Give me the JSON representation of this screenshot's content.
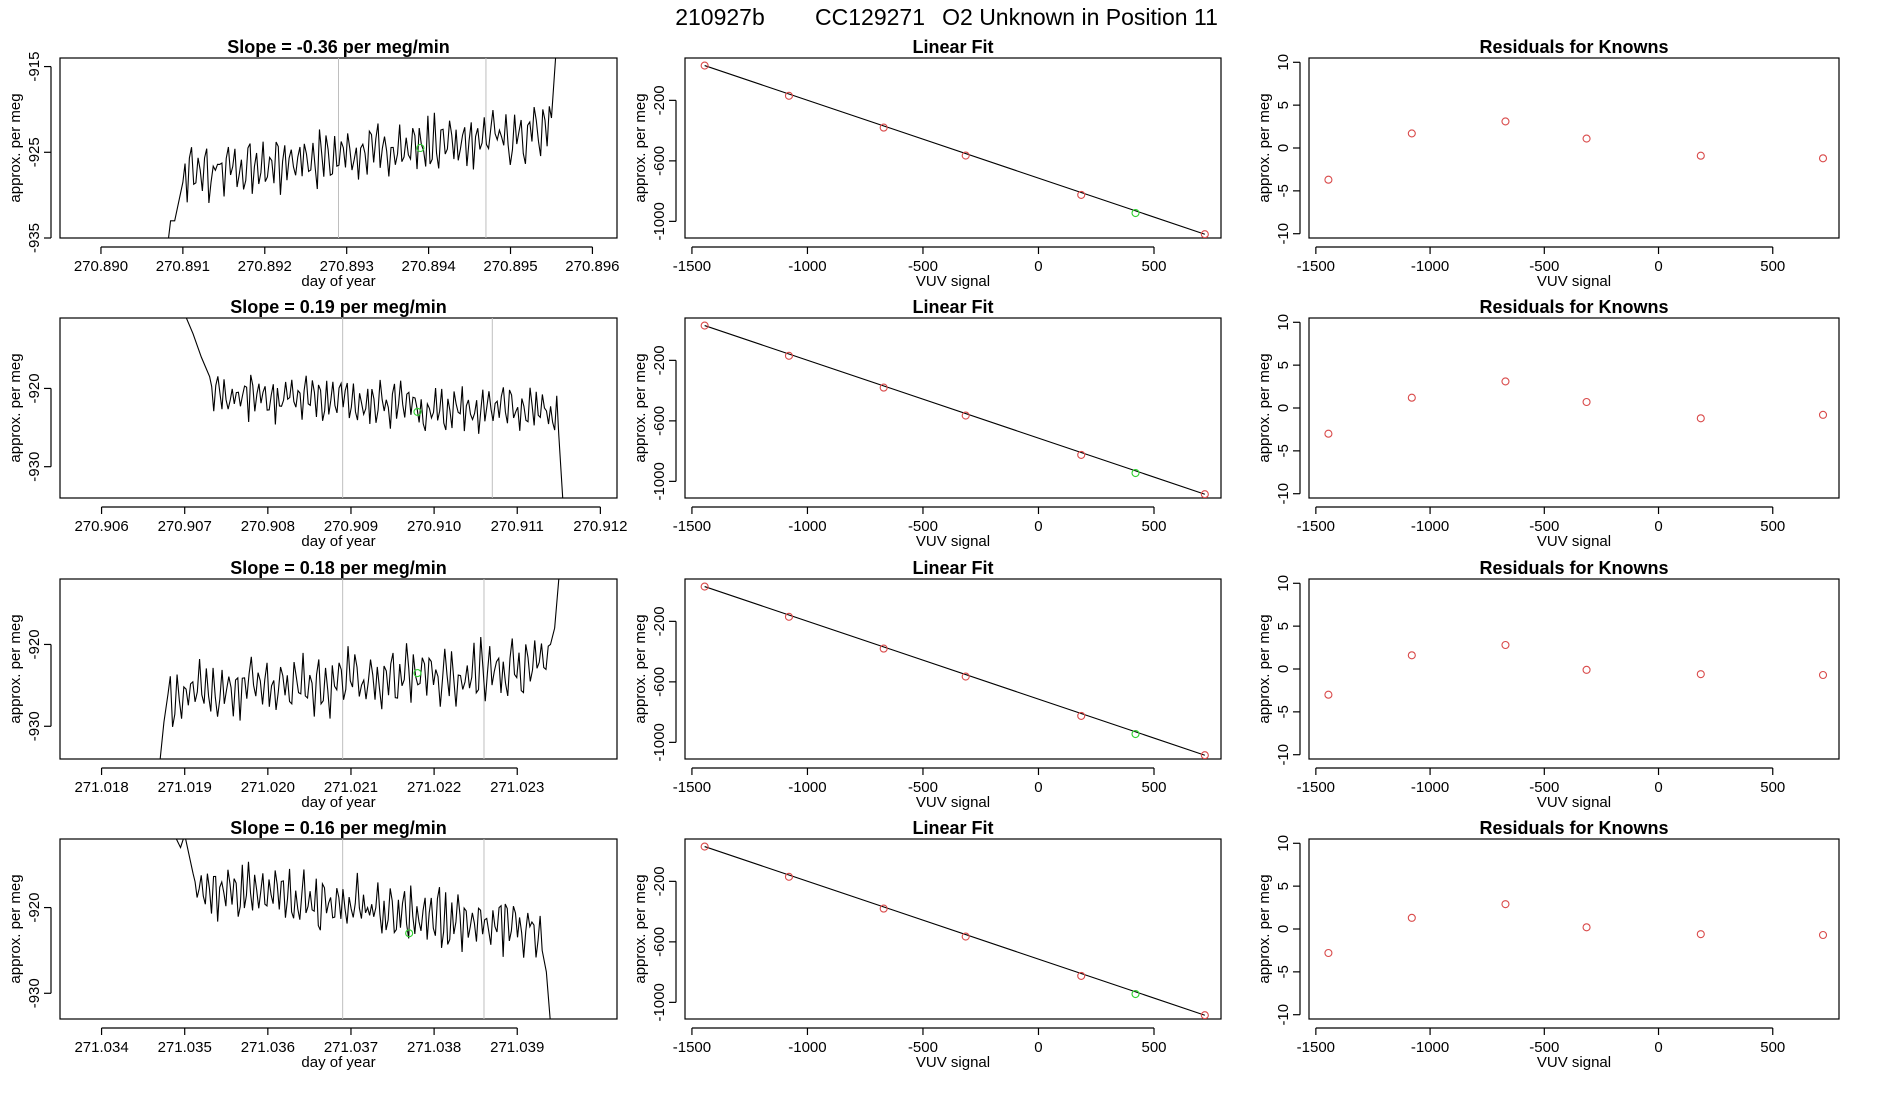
{
  "page": {
    "title_parts": [
      "210927b",
      "CC129271",
      "O2 Unknown in Position  11"
    ]
  },
  "colors": {
    "known": "#d94a4a",
    "unknown": "#2fd02f",
    "trace": "#000000",
    "reference_line": "#bfbfbf"
  },
  "chart_data": [
    {
      "type": "line",
      "role": "timeseries",
      "row": 0,
      "title": "Slope =  -0.36  per meg/min",
      "xlabel": "day of year",
      "ylabel": "approx. per meg",
      "xlim": [
        270.8895,
        270.8963
      ],
      "ylim": [
        -935,
        -914
      ],
      "x_ticks": [
        270.89,
        270.891,
        270.892,
        270.893,
        270.894,
        270.895,
        270.896
      ],
      "x_tick_labels": [
        "270.890",
        "270.891",
        "270.892",
        "270.893",
        "270.894",
        "270.895",
        "270.896"
      ],
      "y_ticks": [
        -935,
        -925,
        -915
      ],
      "y_tick_labels": [
        "-935",
        "-925",
        "-915"
      ],
      "vlines": [
        270.8929,
        270.8947
      ],
      "series": {
        "x_start": 270.8908,
        "x_end": 270.8955,
        "seed": 11,
        "baseline_start": -927.5,
        "baseline_end": -922.5,
        "amplitude": 2.3,
        "lead_in": [
          [
            270.8908,
            -937
          ],
          [
            270.89085,
            -933
          ],
          [
            270.8909,
            -933
          ],
          [
            270.891,
            -928.5
          ]
        ],
        "tail": [
          [
            270.8955,
            -921
          ],
          [
            270.89555,
            -914
          ]
        ]
      },
      "unknown_point": {
        "x": 270.8939,
        "y": -924.5
      }
    },
    {
      "type": "line",
      "role": "linear-fit",
      "row": 0,
      "title": "Linear Fit",
      "xlabel": "VUV signal",
      "ylabel": "approx. per meg",
      "xlim": [
        -1530,
        790
      ],
      "ylim": [
        -1110,
        80
      ],
      "x_ticks": [
        -1500,
        -1000,
        -500,
        0,
        500
      ],
      "x_tick_labels": [
        "-1500",
        "-1000",
        "-500",
        "0",
        "500"
      ],
      "y_ticks": [
        -1000,
        -600,
        -200
      ],
      "y_tick_labels": [
        "-1000",
        "-600",
        "-200"
      ],
      "fit_line": [
        [
          -1445,
          30
        ],
        [
          720,
          -1085
        ]
      ],
      "known_points": [
        [
          -1445,
          30
        ],
        [
          -1080,
          -170
        ],
        [
          -670,
          -380
        ],
        [
          -315,
          -565
        ],
        [
          185,
          -825
        ],
        [
          720,
          -1085
        ]
      ],
      "unknown_points": [
        [
          420,
          -945
        ]
      ]
    },
    {
      "type": "scatter",
      "role": "residuals",
      "row": 0,
      "title": "Residuals for Knowns",
      "xlabel": "VUV signal",
      "ylabel": "approx. per meg",
      "xlim": [
        -1530,
        790
      ],
      "ylim": [
        -10.5,
        10.5
      ],
      "x_ticks": [
        -1500,
        -1000,
        -500,
        0,
        500
      ],
      "x_tick_labels": [
        "-1500",
        "-1000",
        "-500",
        "0",
        "500"
      ],
      "y_ticks": [
        -10,
        -5,
        0,
        5,
        10
      ],
      "y_tick_labels": [
        "-10",
        "-5",
        "0",
        "5",
        "10"
      ],
      "points": [
        [
          -1445,
          -3.7
        ],
        [
          -1080,
          1.7
        ],
        [
          -670,
          3.1
        ],
        [
          -315,
          1.1
        ],
        [
          185,
          -0.9
        ],
        [
          720,
          -1.2
        ]
      ]
    },
    {
      "type": "line",
      "role": "timeseries",
      "row": 1,
      "title": "Slope =  0.19  per meg/min",
      "xlabel": "day of year",
      "ylabel": "approx. per meg",
      "xlim": [
        270.9055,
        270.9122
      ],
      "ylim": [
        -934,
        -911
      ],
      "x_ticks": [
        270.906,
        270.907,
        270.908,
        270.909,
        270.91,
        270.911,
        270.912
      ],
      "x_tick_labels": [
        "270.906",
        "270.907",
        "270.908",
        "270.909",
        "270.910",
        "270.911",
        "270.912"
      ],
      "y_ticks": [
        -930,
        -920
      ],
      "y_tick_labels": [
        "-930",
        "-920"
      ],
      "vlines": [
        270.9089,
        270.9107
      ],
      "series": {
        "x_start": 270.907,
        "x_end": 270.9115,
        "seed": 23,
        "baseline_start": -921.0,
        "baseline_end": -923.0,
        "amplitude": 2.0,
        "lead_in": [
          [
            270.907,
            -910.5
          ],
          [
            270.9071,
            -913
          ],
          [
            270.9072,
            -916
          ],
          [
            270.9073,
            -918.5
          ]
        ],
        "tail": [
          [
            270.9115,
            -926
          ],
          [
            270.91155,
            -934.5
          ]
        ]
      },
      "unknown_point": {
        "x": 270.9098,
        "y": -923
      }
    },
    {
      "type": "line",
      "role": "linear-fit",
      "row": 1,
      "title": "Linear Fit",
      "xlabel": "VUV signal",
      "ylabel": "approx. per meg",
      "xlim": [
        -1530,
        790
      ],
      "ylim": [
        -1110,
        80
      ],
      "x_ticks": [
        -1500,
        -1000,
        -500,
        0,
        500
      ],
      "x_tick_labels": [
        "-1500",
        "-1000",
        "-500",
        "0",
        "500"
      ],
      "y_ticks": [
        -1000,
        -600,
        -200
      ],
      "y_tick_labels": [
        "-1000",
        "-600",
        "-200"
      ],
      "fit_line": [
        [
          -1445,
          30
        ],
        [
          720,
          -1085
        ]
      ],
      "known_points": [
        [
          -1445,
          30
        ],
        [
          -1080,
          -170
        ],
        [
          -670,
          -380
        ],
        [
          -315,
          -565
        ],
        [
          185,
          -825
        ],
        [
          720,
          -1085
        ]
      ],
      "unknown_points": [
        [
          420,
          -945
        ]
      ]
    },
    {
      "type": "scatter",
      "role": "residuals",
      "row": 1,
      "title": "Residuals for Knowns",
      "xlabel": "VUV signal",
      "ylabel": "approx. per meg",
      "xlim": [
        -1530,
        790
      ],
      "ylim": [
        -10.5,
        10.5
      ],
      "x_ticks": [
        -1500,
        -1000,
        -500,
        0,
        500
      ],
      "x_tick_labels": [
        "-1500",
        "-1000",
        "-500",
        "0",
        "500"
      ],
      "y_ticks": [
        -10,
        -5,
        0,
        5,
        10
      ],
      "y_tick_labels": [
        "-10",
        "-5",
        "0",
        "5",
        "10"
      ],
      "points": [
        [
          -1445,
          -3.0
        ],
        [
          -1080,
          1.2
        ],
        [
          -670,
          3.1
        ],
        [
          -315,
          0.7
        ],
        [
          185,
          -1.2
        ],
        [
          720,
          -0.8
        ]
      ]
    },
    {
      "type": "line",
      "role": "timeseries",
      "row": 2,
      "title": "Slope =  0.18  per meg/min",
      "xlabel": "day of year",
      "ylabel": "approx. per meg",
      "xlim": [
        271.0175,
        271.0242
      ],
      "ylim": [
        -934,
        -912
      ],
      "x_ticks": [
        271.018,
        271.019,
        271.02,
        271.021,
        271.022,
        271.023
      ],
      "x_tick_labels": [
        "271.018",
        "271.019",
        "271.020",
        "271.021",
        "271.022",
        "271.023"
      ],
      "y_ticks": [
        -930,
        -920
      ],
      "y_tick_labels": [
        "-930",
        "-920"
      ],
      "vlines": [
        271.0209,
        271.0226
      ],
      "series": {
        "x_start": 271.0187,
        "x_end": 271.0235,
        "seed": 37,
        "baseline_start": -926.5,
        "baseline_end": -922.5,
        "amplitude": 2.6,
        "lead_in": [
          [
            271.0187,
            -934.5
          ],
          [
            271.01875,
            -929.5
          ],
          [
            271.0188,
            -926
          ]
        ],
        "tail": [
          [
            271.0234,
            -920
          ],
          [
            271.02345,
            -918
          ],
          [
            271.0235,
            -912
          ]
        ]
      },
      "unknown_point": {
        "x": 271.0218,
        "y": -923.5
      }
    },
    {
      "type": "line",
      "role": "linear-fit",
      "row": 2,
      "title": "Linear Fit",
      "xlabel": "VUV signal",
      "ylabel": "approx. per meg",
      "xlim": [
        -1530,
        790
      ],
      "ylim": [
        -1110,
        80
      ],
      "x_ticks": [
        -1500,
        -1000,
        -500,
        0,
        500
      ],
      "x_tick_labels": [
        "-1500",
        "-1000",
        "-500",
        "0",
        "500"
      ],
      "y_ticks": [
        -1000,
        -600,
        -200
      ],
      "y_tick_labels": [
        "-1000",
        "-600",
        "-200"
      ],
      "fit_line": [
        [
          -1445,
          30
        ],
        [
          720,
          -1085
        ]
      ],
      "known_points": [
        [
          -1445,
          30
        ],
        [
          -1080,
          -170
        ],
        [
          -670,
          -380
        ],
        [
          -315,
          -565
        ],
        [
          185,
          -825
        ],
        [
          720,
          -1085
        ]
      ],
      "unknown_points": [
        [
          420,
          -945
        ]
      ]
    },
    {
      "type": "scatter",
      "role": "residuals",
      "row": 2,
      "title": "Residuals for Knowns",
      "xlabel": "VUV signal",
      "ylabel": "approx. per meg",
      "xlim": [
        -1530,
        790
      ],
      "ylim": [
        -10.5,
        10.5
      ],
      "x_ticks": [
        -1500,
        -1000,
        -500,
        0,
        500
      ],
      "x_tick_labels": [
        "-1500",
        "-1000",
        "-500",
        "0",
        "500"
      ],
      "y_ticks": [
        -10,
        -5,
        0,
        5,
        10
      ],
      "y_tick_labels": [
        "-10",
        "-5",
        "0",
        "5",
        "10"
      ],
      "points": [
        [
          -1445,
          -3.0
        ],
        [
          -1080,
          1.6
        ],
        [
          -670,
          2.8
        ],
        [
          -315,
          -0.1
        ],
        [
          185,
          -0.6
        ],
        [
          720,
          -0.7
        ]
      ]
    },
    {
      "type": "line",
      "role": "timeseries",
      "row": 3,
      "title": "Slope =  0.16  per meg/min",
      "xlabel": "day of year",
      "ylabel": "approx. per meg",
      "xlim": [
        271.0335,
        271.0402
      ],
      "ylim": [
        -933,
        -912
      ],
      "x_ticks": [
        271.034,
        271.035,
        271.036,
        271.037,
        271.038,
        271.039
      ],
      "x_tick_labels": [
        "271.034",
        "271.035",
        "271.036",
        "271.037",
        "271.038",
        "271.039"
      ],
      "y_ticks": [
        -930,
        -920
      ],
      "y_tick_labels": [
        "-930",
        "-920"
      ],
      "vlines": [
        271.0369,
        271.0386
      ],
      "series": {
        "x_start": 271.0349,
        "x_end": 271.0394,
        "seed": 53,
        "baseline_start": -917.5,
        "baseline_end": -922.5,
        "amplitude": 2.4,
        "lead_in": [
          [
            271.0349,
            -912
          ],
          [
            271.03495,
            -913
          ],
          [
            271.035,
            -911.5
          ],
          [
            271.0351,
            -916
          ]
        ],
        "tail": [
          [
            271.0393,
            -925
          ],
          [
            271.03935,
            -927.5
          ],
          [
            271.0394,
            -933.5
          ]
        ]
      },
      "unknown_point": {
        "x": 271.0377,
        "y": -923
      }
    },
    {
      "type": "line",
      "role": "linear-fit",
      "row": 3,
      "title": "Linear Fit",
      "xlabel": "VUV signal",
      "ylabel": "approx. per meg",
      "xlim": [
        -1530,
        790
      ],
      "ylim": [
        -1110,
        80
      ],
      "x_ticks": [
        -1500,
        -1000,
        -500,
        0,
        500
      ],
      "x_tick_labels": [
        "-1500",
        "-1000",
        "-500",
        "0",
        "500"
      ],
      "y_ticks": [
        -1000,
        -600,
        -200
      ],
      "y_tick_labels": [
        "-1000",
        "-600",
        "-200"
      ],
      "fit_line": [
        [
          -1445,
          30
        ],
        [
          720,
          -1085
        ]
      ],
      "known_points": [
        [
          -1445,
          30
        ],
        [
          -1080,
          -170
        ],
        [
          -670,
          -380
        ],
        [
          -315,
          -565
        ],
        [
          185,
          -825
        ],
        [
          720,
          -1085
        ]
      ],
      "unknown_points": [
        [
          420,
          -945
        ]
      ]
    },
    {
      "type": "scatter",
      "role": "residuals",
      "row": 3,
      "title": "Residuals for Knowns",
      "xlabel": "VUV signal",
      "ylabel": "approx. per meg",
      "xlim": [
        -1530,
        790
      ],
      "ylim": [
        -10.5,
        10.5
      ],
      "x_ticks": [
        -1500,
        -1000,
        -500,
        0,
        500
      ],
      "x_tick_labels": [
        "-1500",
        "-1000",
        "-500",
        "0",
        "500"
      ],
      "y_ticks": [
        -10,
        -5,
        0,
        5,
        10
      ],
      "y_tick_labels": [
        "-10",
        "-5",
        "0",
        "5",
        "10"
      ],
      "points": [
        [
          -1445,
          -2.8
        ],
        [
          -1080,
          1.3
        ],
        [
          -670,
          2.9
        ],
        [
          -315,
          0.2
        ],
        [
          185,
          -0.6
        ],
        [
          720,
          -0.7
        ]
      ]
    }
  ]
}
